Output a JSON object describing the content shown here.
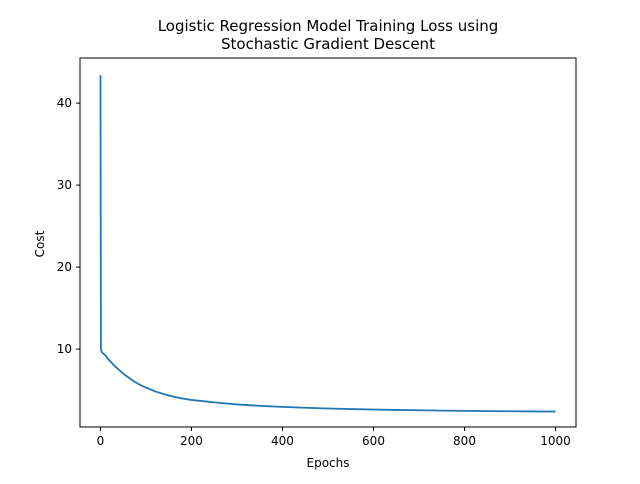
{
  "chart_data": {
    "type": "line",
    "title_lines": [
      "Logistic Regression Model Training Loss using",
      "Stochastic Gradient Descent"
    ],
    "xlabel": "Epochs",
    "ylabel": "Cost",
    "xlim": [
      -45,
      1045
    ],
    "ylim": [
      0.5,
      45.5
    ],
    "xticks": [
      0,
      200,
      400,
      600,
      800,
      1000
    ],
    "yticks": [
      10,
      20,
      30,
      40
    ],
    "grid": false,
    "legend": "none",
    "series": [
      {
        "color": "#1f77b4",
        "x": [
          0,
          1,
          2,
          5,
          10,
          15,
          20,
          25,
          30,
          40,
          50,
          60,
          70,
          80,
          90,
          100,
          120,
          140,
          160,
          180,
          200,
          250,
          300,
          350,
          400,
          450,
          500,
          550,
          600,
          650,
          700,
          750,
          800,
          850,
          900,
          950,
          1000
        ],
        "y": [
          43.4,
          10.0,
          9.7,
          9.5,
          9.3,
          8.9,
          8.6,
          8.3,
          8.0,
          7.5,
          7.0,
          6.6,
          6.2,
          5.85,
          5.55,
          5.3,
          4.85,
          4.5,
          4.2,
          3.98,
          3.8,
          3.5,
          3.25,
          3.08,
          2.95,
          2.85,
          2.76,
          2.69,
          2.63,
          2.58,
          2.54,
          2.5,
          2.47,
          2.44,
          2.42,
          2.4,
          2.38
        ]
      }
    ]
  }
}
